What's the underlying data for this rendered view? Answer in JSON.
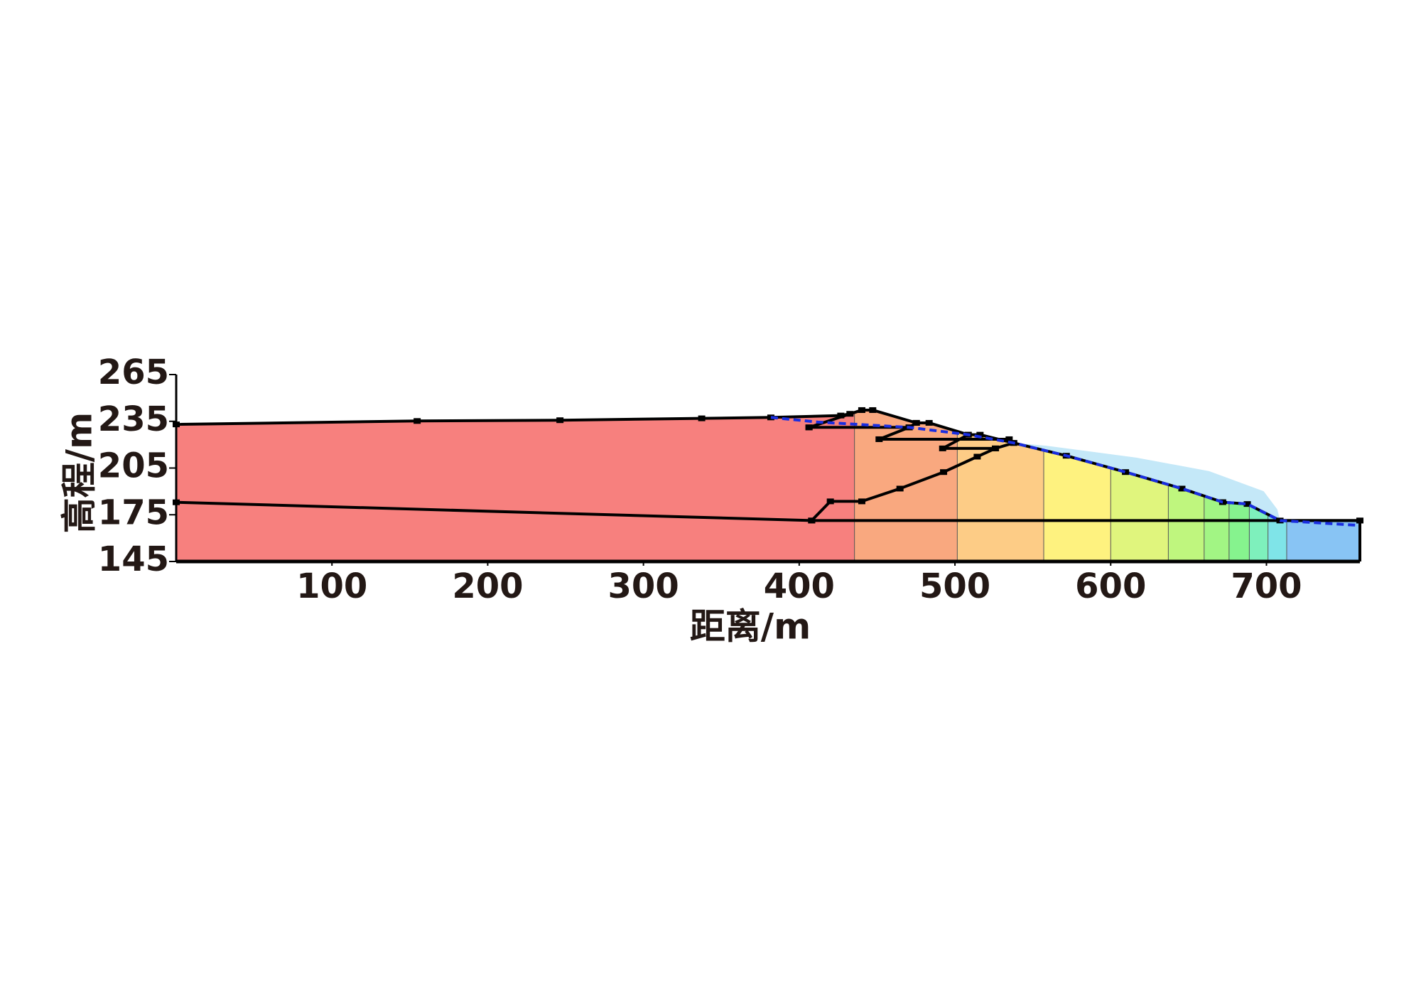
{
  "chart_data": {
    "type": "profile",
    "xlabel": "距离/m",
    "ylabel": "高程/m",
    "xlim": [
      0,
      760
    ],
    "ylim": [
      145,
      265
    ],
    "xticks": [
      100,
      200,
      300,
      400,
      500,
      600,
      700
    ],
    "yticks": [
      145,
      175,
      205,
      235,
      265
    ],
    "bands": {
      "x_edges": [
        0,
        435.5,
        501.5,
        557,
        600,
        637,
        660,
        676,
        689,
        701,
        713,
        760
      ],
      "colors": [
        "#f7807e",
        "#f9a87f",
        "#fdcc86",
        "#fef27f",
        "#e0f57d",
        "#bff67e",
        "#a2f584",
        "#86f38e",
        "#7ef0bc",
        "#7fe4e8",
        "#88c4f4"
      ]
    },
    "seepage_zone": {
      "color": "#c4e8f8",
      "x": [
        537.7,
        558.1,
        616.5,
        663.2,
        698.2,
        707.0,
        708.7,
        687.7,
        671.9,
        645.7,
        609.5,
        571.5
      ],
      "y": [
        221.1,
        219.4,
        211.7,
        203.0,
        190.1,
        178.4,
        171.3,
        181.9,
        183.1,
        191.8,
        202.4,
        212.9
      ]
    },
    "surface": {
      "x": [
        0,
        154.7,
        246.4,
        337.4,
        381.8,
        426.7,
        432.6,
        440.2,
        447.2,
        475.2,
        483.4,
        508.5,
        516.1,
        537.7,
        571.5,
        609.5,
        645.7,
        671.9,
        687.7,
        708.7,
        760
      ],
      "y": [
        233,
        235.2,
        235.7,
        236.9,
        237.5,
        238.7,
        239.8,
        242.2,
        242.2,
        234.0,
        234.0,
        226.4,
        226.4,
        221.1,
        212.9,
        202.4,
        191.8,
        183.1,
        181.9,
        171.3,
        171.3
      ]
    },
    "boundaries": [
      {
        "x": [
          0,
          408,
          420,
          440.2,
          464.7,
          492.7,
          514.3,
          526,
          537.7
        ],
        "y": [
          183,
          171.3,
          183.6,
          183.6,
          191.8,
          202.4,
          212.3,
          217.6,
          221.1
        ]
      },
      {
        "x": [
          408,
          760
        ],
        "y": [
          171.3,
          171.3
        ]
      },
      {
        "x": [
          406.3,
          440.2
        ],
        "y": [
          231.1,
          242.2
        ]
      },
      {
        "x": [
          406.3,
          470.6,
          475.2
        ],
        "y": [
          231.1,
          231.1,
          234.0
        ]
      },
      {
        "x": [
          470.6,
          451.3,
          534.8
        ],
        "y": [
          231.1,
          223.5,
          223.5
        ]
      },
      {
        "x": [
          508.5,
          492.1,
          526
        ],
        "y": [
          226.4,
          217.6,
          217.6
        ]
      }
    ],
    "phreatic": {
      "color": "#1a2ee0",
      "x": [
        381.8,
        412,
        470.6,
        508.5,
        537.7,
        571.5,
        609.5,
        645.7,
        671.9,
        687.7,
        708.7,
        759.5
      ],
      "y": [
        237.5,
        234.5,
        231.1,
        226.4,
        221.1,
        212.9,
        202.4,
        191.8,
        183.1,
        181.9,
        171.3,
        168.2
      ]
    }
  }
}
